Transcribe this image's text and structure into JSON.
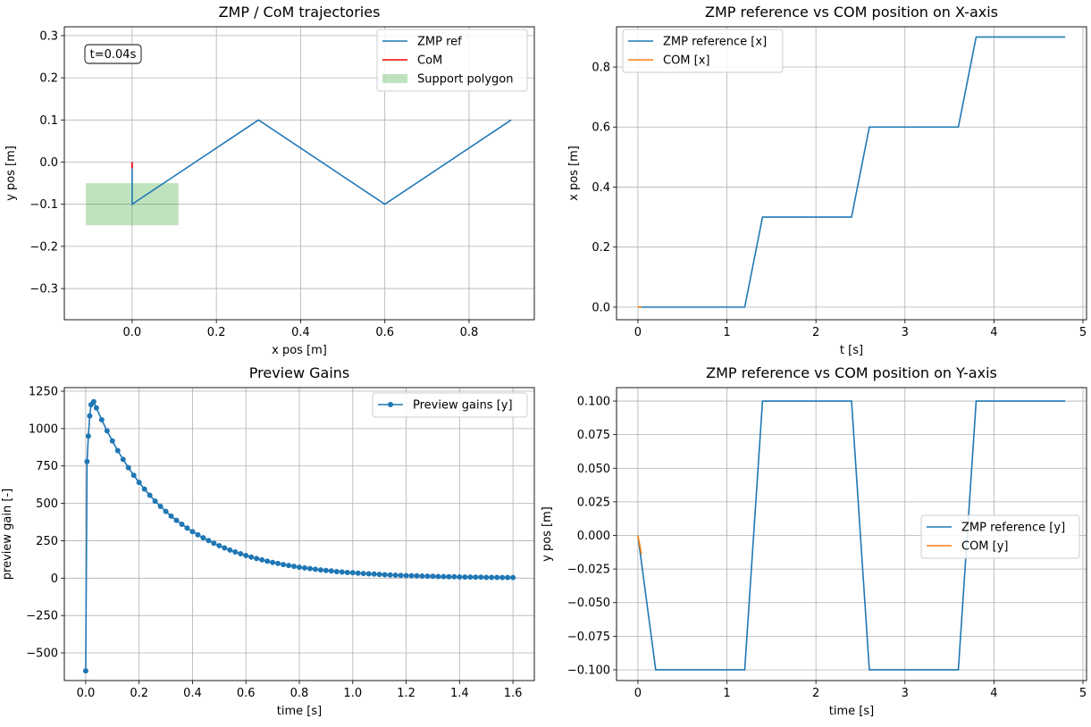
{
  "chart_data": [
    {
      "type": "line",
      "title": "ZMP / CoM trajectories",
      "xlabel": "x pos [m]",
      "ylabel": "y pos [m]",
      "xlim": [
        -0.161,
        0.955
      ],
      "ylim": [
        -0.374,
        0.321
      ],
      "xticks": [
        0.0,
        0.2,
        0.4,
        0.6,
        0.8
      ],
      "xtick_labels": [
        "0.0",
        "0.2",
        "0.4",
        "0.6",
        "0.8"
      ],
      "yticks": [
        -0.3,
        -0.2,
        -0.1,
        0.0,
        0.1,
        0.2,
        0.3
      ],
      "ytick_labels": [
        "−0.3",
        "−0.2",
        "−0.1",
        "0.0",
        "0.1",
        "0.2",
        "0.3"
      ],
      "grid": true,
      "legend_position": "top-right",
      "annotation": "t=0.04s",
      "series": [
        {
          "name": "ZMP ref",
          "color": "#1f77b4",
          "x": [
            0,
            0,
            0.3,
            0.6,
            0.9
          ],
          "y": [
            0,
            -0.1,
            0.1,
            -0.1,
            0.1
          ]
        },
        {
          "name": "CoM",
          "color": "#ff0000",
          "x": [
            0,
            0
          ],
          "y": [
            0,
            -0.015
          ]
        }
      ],
      "patches": [
        {
          "name": "Support polygon",
          "color": "#2ca02c",
          "alpha": 0.3,
          "x": [
            -0.11,
            0.11
          ],
          "y": [
            -0.15,
            -0.05
          ]
        }
      ]
    },
    {
      "type": "line",
      "title": "ZMP reference vs COM position on X-axis",
      "xlabel": "t [s]",
      "ylabel": "x pos [m]",
      "xlim": [
        -0.24,
        5.04
      ],
      "ylim": [
        -0.042,
        0.934
      ],
      "xticks": [
        0,
        1,
        2,
        3,
        4,
        5
      ],
      "xtick_labels": [
        "0",
        "1",
        "2",
        "3",
        "4",
        "5"
      ],
      "yticks": [
        0.0,
        0.2,
        0.4,
        0.6,
        0.8
      ],
      "ytick_labels": [
        "0.0",
        "0.2",
        "0.4",
        "0.6",
        "0.8"
      ],
      "grid": true,
      "legend_position": "top-left",
      "series": [
        {
          "name": "ZMP reference [x]",
          "color": "#1f77b4",
          "x": [
            0,
            1.2,
            1.4,
            2.4,
            2.6,
            3.6,
            3.8,
            4.8
          ],
          "y": [
            0,
            0,
            0.3,
            0.3,
            0.6,
            0.6,
            0.9,
            0.9
          ]
        },
        {
          "name": "COM [x]",
          "color": "#ff7f0e",
          "x": [
            0,
            0.04
          ],
          "y": [
            0,
            0.0005
          ]
        }
      ]
    },
    {
      "type": "line",
      "title": "Preview Gains",
      "xlabel": "time [s]",
      "ylabel": "preview gain [-]",
      "xlim": [
        -0.08,
        1.68
      ],
      "ylim": [
        -685,
        1274
      ],
      "xticks": [
        0.0,
        0.2,
        0.4,
        0.6,
        0.8,
        1.0,
        1.2,
        1.4,
        1.6
      ],
      "xtick_labels": [
        "0.0",
        "0.2",
        "0.4",
        "0.6",
        "0.8",
        "1.0",
        "1.2",
        "1.4",
        "1.6"
      ],
      "yticks": [
        -500,
        -250,
        0,
        250,
        500,
        750,
        1000,
        1250
      ],
      "ytick_labels": [
        "−500",
        "−250",
        "0",
        "250",
        "500",
        "750",
        "1000",
        "1250"
      ],
      "grid": true,
      "legend_position": "top-right",
      "series": [
        {
          "name": "Preview gains [y]",
          "color": "#1f77b4",
          "marker": "o",
          "points": [
            [
              0,
              -620
            ],
            [
              0.005,
              780
            ],
            [
              0.01,
              950
            ],
            [
              0.015,
              1085
            ],
            [
              0.02,
              1160
            ],
            [
              0.03,
              1180
            ],
            [
              0.04,
              1138
            ],
            [
              0.06,
              1059
            ],
            [
              0.08,
              985
            ],
            [
              0.1,
              917
            ],
            [
              0.12,
              853
            ],
            [
              0.14,
              794
            ],
            [
              0.16,
              739
            ],
            [
              0.18,
              687
            ],
            [
              0.2,
              640
            ],
            [
              0.22,
              595
            ],
            [
              0.24,
              554
            ],
            [
              0.26,
              515
            ],
            [
              0.28,
              480
            ],
            [
              0.3,
              446
            ],
            [
              0.32,
              415
            ],
            [
              0.34,
              386
            ],
            [
              0.36,
              360
            ],
            [
              0.38,
              335
            ],
            [
              0.4,
              311
            ],
            [
              0.42,
              290
            ],
            [
              0.44,
              270
            ],
            [
              0.46,
              251
            ],
            [
              0.48,
              233
            ],
            [
              0.5,
              217
            ],
            [
              0.52,
              202
            ],
            [
              0.54,
              188
            ],
            [
              0.56,
              175
            ],
            [
              0.58,
              163
            ],
            [
              0.6,
              151
            ],
            [
              0.62,
              141
            ],
            [
              0.64,
              131
            ],
            [
              0.66,
              122
            ],
            [
              0.68,
              113
            ],
            [
              0.7,
              105
            ],
            [
              0.72,
              98
            ],
            [
              0.74,
              91
            ],
            [
              0.76,
              85
            ],
            [
              0.78,
              79
            ],
            [
              0.8,
              73
            ],
            [
              0.82,
              68
            ],
            [
              0.84,
              64
            ],
            [
              0.86,
              59
            ],
            [
              0.88,
              55
            ],
            [
              0.9,
              51
            ],
            [
              0.92,
              48
            ],
            [
              0.94,
              44
            ],
            [
              0.96,
              41
            ],
            [
              0.98,
              38
            ],
            [
              1.0,
              36
            ],
            [
              1.02,
              33
            ],
            [
              1.04,
              31
            ],
            [
              1.06,
              29
            ],
            [
              1.08,
              27
            ],
            [
              1.1,
              25
            ],
            [
              1.12,
              23
            ],
            [
              1.14,
              21
            ],
            [
              1.16,
              20
            ],
            [
              1.18,
              18
            ],
            [
              1.2,
              17
            ],
            [
              1.22,
              16
            ],
            [
              1.24,
              15
            ],
            [
              1.26,
              14
            ],
            [
              1.28,
              13
            ],
            [
              1.3,
              12
            ],
            [
              1.32,
              11
            ],
            [
              1.34,
              10
            ],
            [
              1.36,
              9
            ],
            [
              1.38,
              9
            ],
            [
              1.4,
              8
            ],
            [
              1.42,
              7
            ],
            [
              1.44,
              7
            ],
            [
              1.46,
              6
            ],
            [
              1.48,
              6
            ],
            [
              1.5,
              5
            ],
            [
              1.52,
              5
            ],
            [
              1.54,
              5
            ],
            [
              1.56,
              4
            ],
            [
              1.58,
              4
            ],
            [
              1.6,
              4
            ]
          ]
        }
      ]
    },
    {
      "type": "line",
      "title": "ZMP reference vs COM position on Y-axis",
      "xlabel": "time [s]",
      "ylabel": "y pos [m]",
      "xlim": [
        -0.24,
        5.04
      ],
      "ylim": [
        -0.108,
        0.11
      ],
      "xticks": [
        0,
        1,
        2,
        3,
        4,
        5
      ],
      "xtick_labels": [
        "0",
        "1",
        "2",
        "3",
        "4",
        "5"
      ],
      "yticks": [
        -0.1,
        -0.075,
        -0.05,
        -0.025,
        0.0,
        0.025,
        0.05,
        0.075,
        0.1
      ],
      "ytick_labels": [
        "−0.100",
        "−0.075",
        "−0.050",
        "−0.025",
        "0.000",
        "0.025",
        "0.050",
        "0.075",
        "0.100"
      ],
      "grid": true,
      "legend_position": "center-right",
      "series": [
        {
          "name": "ZMP reference [y]",
          "color": "#1f77b4",
          "x": [
            0,
            0.2,
            1.2,
            1.4,
            2.4,
            2.6,
            3.6,
            3.8,
            4.8
          ],
          "y": [
            0,
            -0.1,
            -0.1,
            0.1,
            0.1,
            -0.1,
            -0.1,
            0.1,
            0.1
          ]
        },
        {
          "name": "COM [y]",
          "color": "#ff7f0e",
          "x": [
            0,
            0.04
          ],
          "y": [
            0,
            -0.014
          ]
        }
      ]
    }
  ]
}
